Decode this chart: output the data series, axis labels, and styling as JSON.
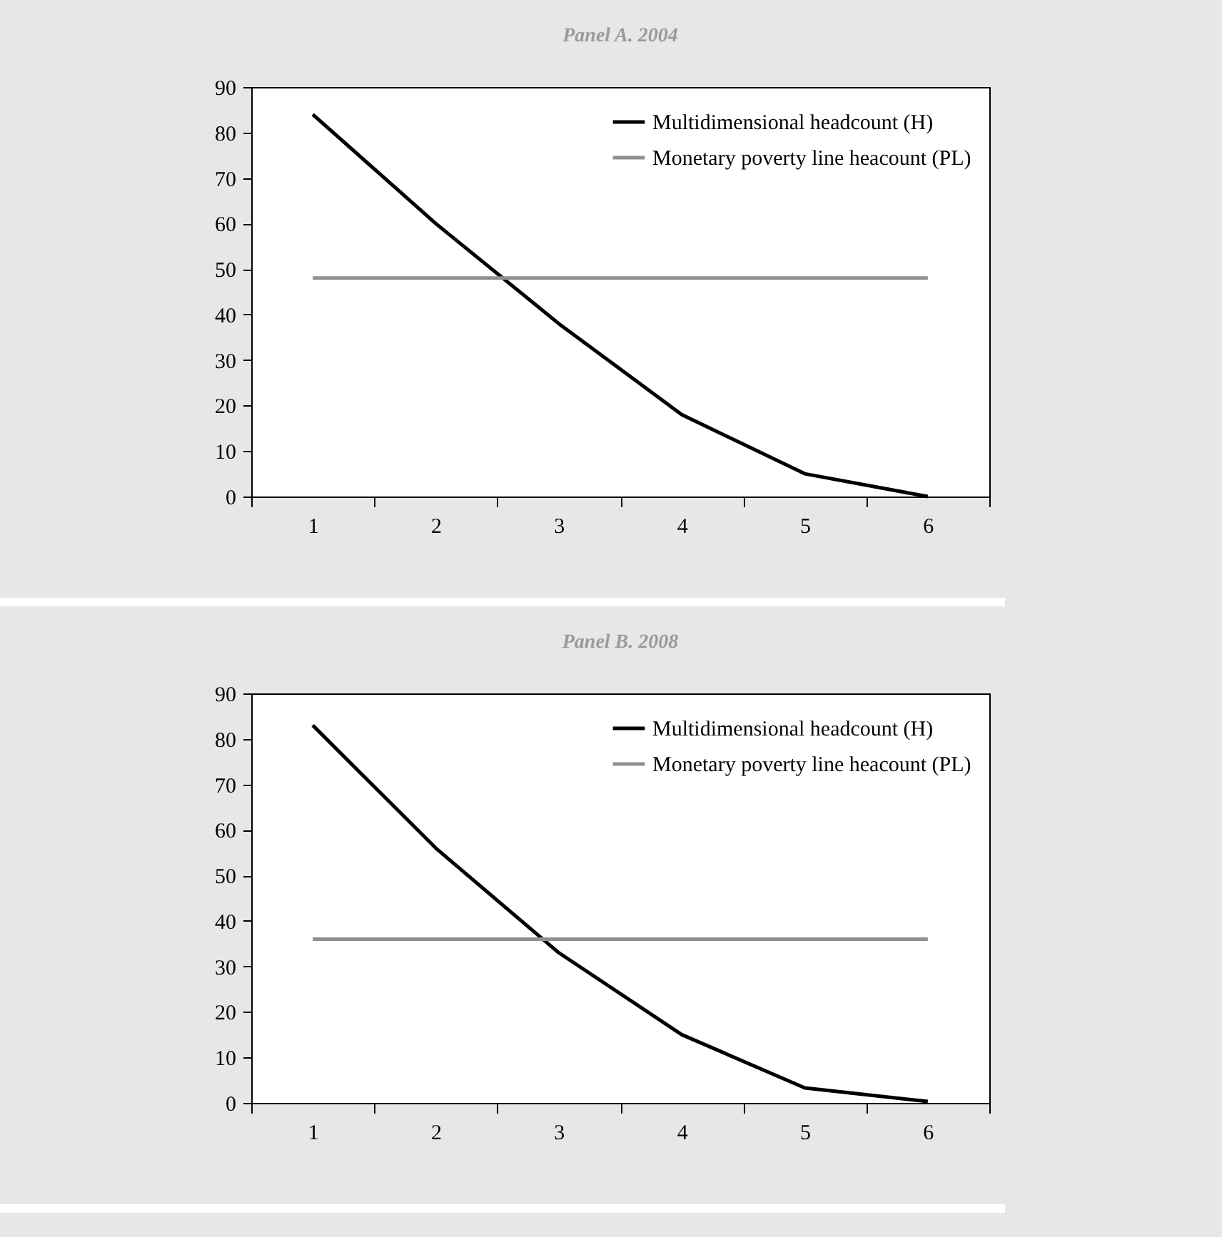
{
  "chart_data": [
    {
      "type": "line",
      "title": "Panel A. 2004",
      "categories": [
        "1",
        "2",
        "3",
        "4",
        "5",
        "6"
      ],
      "series": [
        {
          "name": "Multidimensional headcount (H)",
          "color": "#000000",
          "values": [
            84,
            60,
            38,
            18,
            5,
            0
          ]
        },
        {
          "name": "Monetary poverty line heacount (PL)",
          "color": "#909090",
          "values": [
            48,
            48,
            48,
            48,
            48,
            48
          ]
        }
      ],
      "ylim": [
        0,
        90
      ],
      "yticks": [
        0,
        10,
        20,
        30,
        40,
        50,
        60,
        70,
        80,
        90
      ],
      "legend": "top right",
      "grid": false
    },
    {
      "type": "line",
      "title": "Panel B. 2008",
      "categories": [
        "1",
        "2",
        "3",
        "4",
        "5",
        "6"
      ],
      "series": [
        {
          "name": "Multidimensional headcount (H)",
          "color": "#000000",
          "values": [
            83,
            56,
            33,
            15,
            3.3,
            0.3
          ]
        },
        {
          "name": "Monetary poverty line heacount (PL)",
          "color": "#909090",
          "values": [
            36,
            36,
            36,
            36,
            36,
            36
          ]
        }
      ],
      "ylim": [
        0,
        90
      ],
      "yticks": [
        0,
        10,
        20,
        30,
        40,
        50,
        60,
        70,
        80,
        90
      ],
      "legend": "top right",
      "grid": false
    }
  ]
}
